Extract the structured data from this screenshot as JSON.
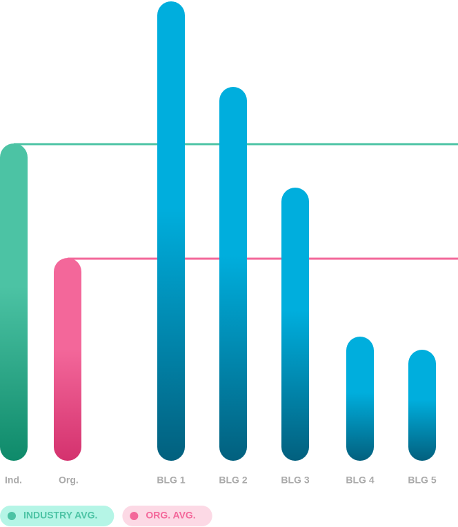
{
  "chart_data": {
    "type": "bar",
    "categories": [
      "Ind.",
      "Org.",
      "BLG 1",
      "BLG 2",
      "BLG 3",
      "BLG 4",
      "BLG 5"
    ],
    "series": [
      {
        "name": "INDUSTRY AVG.",
        "color": "#4cc3a4",
        "color_dark": "#0e8a6a",
        "light": "#b5f5e6",
        "values": [
          460,
          null,
          null,
          null,
          null,
          null,
          null
        ]
      },
      {
        "name": "ORG. AVG.",
        "color": "#f3679a",
        "color_dark": "#d4326e",
        "light": "#fcd9e5",
        "values": [
          null,
          294,
          null,
          null,
          null,
          null,
          null
        ]
      },
      {
        "color": "#00aedd",
        "color_dark": "#02607e",
        "values": [
          null,
          null,
          666,
          542,
          396,
          180,
          161
        ]
      }
    ],
    "ylim": [
      0,
      668
    ]
  }
}
